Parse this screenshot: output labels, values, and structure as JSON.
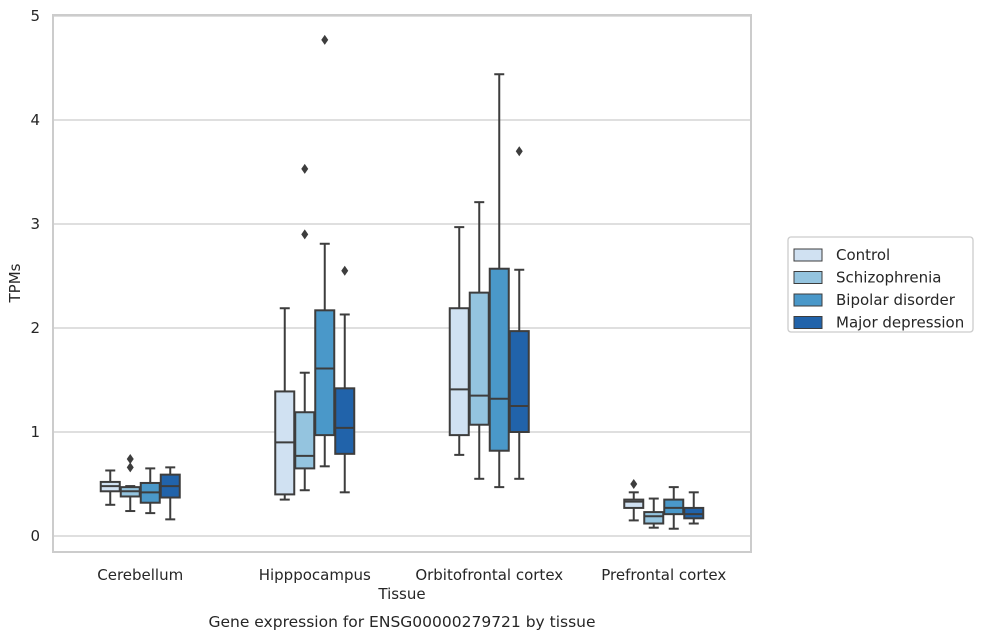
{
  "chart_data": {
    "type": "boxplot",
    "caption": "Gene expression for ENSG00000279721 by tissue",
    "xlabel": "Tissue",
    "ylabel": "TPMs",
    "ylim": [
      -0.15,
      5
    ],
    "yticks": [
      0,
      1,
      2,
      3,
      4,
      5
    ],
    "grid": "horizontal",
    "legend_position": "right-center",
    "categories": [
      "Cerebellum",
      "Hipppocampus",
      "Orbitofrontal cortex",
      "Prefrontal cortex"
    ],
    "series": [
      {
        "name": "Control",
        "color": "#d0e1f2",
        "boxes": [
          {
            "whislo": 0.3,
            "q1": 0.43,
            "median": 0.48,
            "q3": 0.52,
            "whishi": 0.63,
            "fliers": []
          },
          {
            "whislo": 0.35,
            "q1": 0.4,
            "median": 0.9,
            "q3": 1.39,
            "whishi": 2.19,
            "fliers": []
          },
          {
            "whislo": 0.78,
            "q1": 0.97,
            "median": 1.41,
            "q3": 2.19,
            "whishi": 2.97,
            "fliers": []
          },
          {
            "whislo": 0.15,
            "q1": 0.27,
            "median": 0.33,
            "q3": 0.35,
            "whishi": 0.42,
            "fliers": [
              0.5
            ]
          }
        ]
      },
      {
        "name": "Schizophrenia",
        "color": "#94c4df",
        "boxes": [
          {
            "whislo": 0.24,
            "q1": 0.38,
            "median": 0.43,
            "q3": 0.47,
            "whishi": 0.48,
            "fliers": [
              0.66,
              0.74
            ]
          },
          {
            "whislo": 0.44,
            "q1": 0.65,
            "median": 0.77,
            "q3": 1.19,
            "whishi": 1.57,
            "fliers": [
              2.9,
              3.53
            ]
          },
          {
            "whislo": 0.55,
            "q1": 1.07,
            "median": 1.35,
            "q3": 2.34,
            "whishi": 3.21,
            "fliers": []
          },
          {
            "whislo": 0.08,
            "q1": 0.12,
            "median": 0.19,
            "q3": 0.23,
            "whishi": 0.36,
            "fliers": []
          }
        ]
      },
      {
        "name": "Bipolar disorder",
        "color": "#4a98c9",
        "boxes": [
          {
            "whislo": 0.22,
            "q1": 0.32,
            "median": 0.42,
            "q3": 0.51,
            "whishi": 0.65,
            "fliers": []
          },
          {
            "whislo": 0.67,
            "q1": 0.97,
            "median": 1.61,
            "q3": 2.17,
            "whishi": 2.81,
            "fliers": [
              4.77
            ]
          },
          {
            "whislo": 0.47,
            "q1": 0.82,
            "median": 1.32,
            "q3": 2.57,
            "whishi": 4.44,
            "fliers": []
          },
          {
            "whislo": 0.07,
            "q1": 0.21,
            "median": 0.27,
            "q3": 0.35,
            "whishi": 0.47,
            "fliers": []
          }
        ]
      },
      {
        "name": "Major depression",
        "color": "#2163aa",
        "boxes": [
          {
            "whislo": 0.16,
            "q1": 0.37,
            "median": 0.48,
            "q3": 0.59,
            "whishi": 0.66,
            "fliers": []
          },
          {
            "whislo": 0.42,
            "q1": 0.79,
            "median": 1.04,
            "q3": 1.42,
            "whishi": 2.13,
            "fliers": [
              2.55
            ]
          },
          {
            "whislo": 0.55,
            "q1": 1.0,
            "median": 1.25,
            "q3": 1.97,
            "whishi": 2.56,
            "fliers": [
              3.7
            ]
          },
          {
            "whislo": 0.12,
            "q1": 0.17,
            "median": 0.21,
            "q3": 0.27,
            "whishi": 0.42,
            "fliers": []
          }
        ]
      }
    ]
  },
  "colors": {
    "box_edge": "#3d3d3d",
    "grid": "#cccccc",
    "frame": "#cccccc",
    "legend_border": "#cccccc"
  }
}
